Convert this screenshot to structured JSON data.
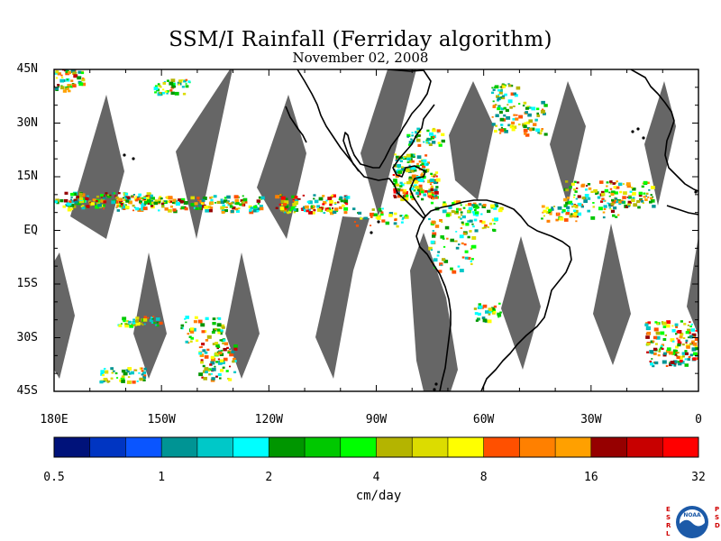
{
  "title": "SSM/I Rainfall (Ferriday algorithm)",
  "subtitle": "November 02, 2008",
  "map": {
    "lat_labels": [
      "45N",
      "30N",
      "15N",
      "EQ",
      "15S",
      "30S",
      "45S"
    ],
    "lat_values": [
      45,
      30,
      15,
      0,
      -15,
      -30,
      -45
    ],
    "lon_labels": [
      "180E",
      "150W",
      "120W",
      "90W",
      "60W",
      "30W",
      "0"
    ],
    "lon_values": [
      -180,
      -150,
      -120,
      -90,
      -60,
      -30,
      0
    ],
    "extent": {
      "lon": [
        -180,
        0
      ],
      "lat": [
        -45,
        45
      ]
    },
    "no_data_color": "#666666",
    "coast_color": "#000000"
  },
  "colorbar": {
    "tick_labels": [
      "0.5",
      "1",
      "2",
      "4",
      "8",
      "16",
      "32"
    ],
    "unit": "cm/day",
    "colors": [
      "#00127a",
      "#0035c2",
      "#0a55ff",
      "#009494",
      "#00c8c8",
      "#00ffff",
      "#009600",
      "#00c800",
      "#00ff00",
      "#b4b400",
      "#dcdc00",
      "#ffff00",
      "#ff5000",
      "#ff8000",
      "#ffa000",
      "#960000",
      "#c80000",
      "#ff0000"
    ]
  },
  "logo": {
    "left_letters": "ESRL",
    "right_letters": "PSD",
    "emblem_text": "NOAA",
    "colors": {
      "ring": "#1c5aa8",
      "sky": "#ffffff",
      "sea": "#1c5aa8",
      "letters": "#d00000"
    }
  }
}
